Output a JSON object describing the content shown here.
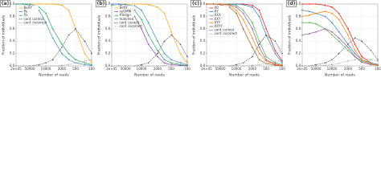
{
  "chart_data": [
    {
      "type": "line",
      "title": "(a)",
      "x_label": "Number of reads",
      "y_label": "Fraction of individuals",
      "x": [
        200000,
        100000,
        50000,
        20000,
        10000,
        5000,
        2000,
        1000,
        500,
        200,
        100
      ],
      "xscale": "log",
      "xlim": [
        200000,
        100
      ],
      "xticks": [
        {
          "value": 200000,
          "label": "2e+05"
        },
        50000,
        10000,
        2000,
        500,
        100
      ],
      "ylim": [
        0,
        1
      ],
      "yticks": [
        {
          "value": 0,
          "label": "0.0"
        },
        0.2,
        0.4,
        0.6,
        0.8,
        {
          "value": 1,
          "label": "1.0"
        }
      ],
      "grid": true,
      "legend": "upper left",
      "series": [
        {
          "name": "BeXY",
          "color": "#f5a623",
          "values": [
            1,
            1,
            1,
            1,
            1,
            1,
            0.98,
            0.9,
            0.6,
            0.2,
            0.05
          ]
        },
        {
          "name": "Ry",
          "color": "#3c8dbc",
          "values": [
            1,
            1,
            0.98,
            0.9,
            0.7,
            0.45,
            0.2,
            0.1,
            0.05,
            0.02,
            0.01
          ]
        },
        {
          "name": "Rx",
          "color": "#2ca25f",
          "values": [
            1,
            1,
            1,
            0.95,
            0.85,
            0.6,
            0.35,
            0.2,
            0.1,
            0.05,
            0.02
          ]
        },
        {
          "name": "conf. correct",
          "color": "#555555",
          "dash": true,
          "values": [
            0,
            0,
            0,
            0.02,
            0.05,
            0.1,
            0.3,
            0.5,
            0.6,
            0.4,
            0.2
          ]
        },
        {
          "name": "conf. incorrect",
          "color": "#aaaaaa",
          "dash": true,
          "values": [
            0,
            0,
            0,
            0,
            0,
            0,
            0.01,
            0.02,
            0.05,
            0.08,
            0.1
          ]
        }
      ]
    },
    {
      "type": "line",
      "title": "(b)",
      "x_label": "Number of reads",
      "y_label": "Fraction of individuals",
      "x": [
        200000,
        100000,
        50000,
        20000,
        10000,
        5000,
        2000,
        1000,
        500,
        200,
        100
      ],
      "xscale": "log",
      "xlim": [
        200000,
        100
      ],
      "xticks": [
        {
          "value": 200000,
          "label": "2e+05"
        },
        50000,
        10000,
        2000,
        500,
        100
      ],
      "ylim": [
        0,
        1
      ],
      "yticks": [
        {
          "value": 0,
          "label": "0.0"
        },
        0.2,
        0.4,
        0.6,
        0.8,
        {
          "value": 1,
          "label": "1.0"
        }
      ],
      "grid": true,
      "legend": "upper left",
      "series": [
        {
          "name": "BeXY",
          "color": "#f5a623",
          "values": [
            1,
            1,
            1,
            1,
            1,
            0.99,
            0.95,
            0.85,
            0.55,
            0.2,
            0.05
          ]
        },
        {
          "name": "seGMM",
          "color": "#8e44ad",
          "values": [
            1,
            1,
            0.95,
            0.8,
            0.6,
            0.35,
            0.15,
            0.05,
            0.02,
            0.01,
            0
          ]
        },
        {
          "name": "XYalign",
          "color": "#2ca25f",
          "values": [
            0.98,
            0.97,
            0.95,
            0.9,
            0.75,
            0.5,
            0.25,
            0.1,
            0.05,
            0.02,
            0.01
          ]
        },
        {
          "name": "matched",
          "color": "#3c8dbc",
          "values": [
            1,
            1,
            0.99,
            0.97,
            0.9,
            0.7,
            0.4,
            0.2,
            0.1,
            0.05,
            0.02
          ]
        },
        {
          "name": "conf. correct",
          "color": "#555555",
          "dash": true,
          "values": [
            0,
            0,
            0,
            0,
            0.02,
            0.05,
            0.2,
            0.4,
            0.5,
            0.35,
            0.15
          ]
        },
        {
          "name": "conf. incorrect",
          "color": "#aaaaaa",
          "dash": true,
          "values": [
            0,
            0,
            0,
            0,
            0,
            0,
            0,
            0.01,
            0.03,
            0.06,
            0.08
          ]
        }
      ]
    },
    {
      "type": "line",
      "title": "(c)",
      "x_label": "Number of reads",
      "y_label": "Fraction of individuals",
      "x": [
        200000,
        100000,
        50000,
        20000,
        10000,
        5000,
        2000,
        1000,
        500,
        200,
        100
      ],
      "xscale": "log",
      "xlim": [
        200000,
        100
      ],
      "xticks": [
        {
          "value": 200000,
          "label": "2e+05"
        },
        50000,
        10000,
        2000,
        500,
        100
      ],
      "ylim": [
        0,
        1
      ],
      "yticks": [
        {
          "value": 0,
          "label": "0.0"
        },
        0.2,
        0.4,
        0.6,
        0.8,
        {
          "value": 1,
          "label": "1.0"
        }
      ],
      "grid": true,
      "legend": "upper left",
      "series": [
        {
          "name": "X0",
          "color": "#e41a1c",
          "values": [
            1,
            1,
            1,
            1,
            1,
            1,
            0.98,
            0.9,
            0.6,
            0.25,
            0.08
          ]
        },
        {
          "name": "XY",
          "color": "#377eb8",
          "values": [
            1,
            1,
            1,
            1,
            1,
            0.99,
            0.95,
            0.8,
            0.5,
            0.2,
            0.05
          ]
        },
        {
          "name": "XXX",
          "color": "#4daf4a",
          "values": [
            1,
            1,
            1,
            1,
            0.98,
            0.9,
            0.7,
            0.4,
            0.15,
            0.05,
            0.02
          ]
        },
        {
          "name": "XXY",
          "color": "#984ea3",
          "values": [
            1,
            1,
            1,
            0.99,
            0.95,
            0.85,
            0.6,
            0.3,
            0.1,
            0.03,
            0.01
          ]
        },
        {
          "name": "XYY",
          "color": "#ff7f00",
          "values": [
            1,
            1,
            1,
            0.98,
            0.9,
            0.75,
            0.45,
            0.2,
            0.08,
            0.02,
            0.01
          ]
        },
        {
          "name": "XXYY",
          "color": "#a65628",
          "values": [
            1,
            1,
            0.99,
            0.95,
            0.85,
            0.6,
            0.3,
            0.1,
            0.04,
            0.01,
            0
          ]
        },
        {
          "name": "conf. correct",
          "color": "#555555",
          "dash": true,
          "values": [
            0,
            0,
            0,
            0,
            0.02,
            0.05,
            0.15,
            0.35,
            0.5,
            0.4,
            0.2
          ]
        },
        {
          "name": "conf. incorrect",
          "color": "#aaaaaa",
          "dash": true,
          "values": [
            0,
            0,
            0,
            0,
            0,
            0,
            0.01,
            0.02,
            0.04,
            0.07,
            0.1
          ]
        }
      ]
    },
    {
      "type": "line",
      "title": "(d)",
      "x_label": "Number of reads",
      "y_label": "Fraction of individuals",
      "x": [
        200000,
        100000,
        50000,
        20000,
        10000,
        5000,
        2000,
        1000,
        500,
        200,
        100
      ],
      "xscale": "log",
      "xlim": [
        200000,
        100
      ],
      "xticks": [
        {
          "value": 200000,
          "label": "2e+05"
        },
        50000,
        10000,
        2000,
        500,
        100
      ],
      "ylim": [
        0,
        1
      ],
      "yticks": [
        {
          "value": 0,
          "label": "0.0"
        },
        0.2,
        0.4,
        0.6,
        0.8,
        {
          "value": 1,
          "label": "1.0"
        }
      ],
      "grid": true,
      "series": [
        {
          "color": "#e41a1c",
          "values": [
            1,
            1,
            1,
            0.98,
            0.95,
            0.85,
            0.6,
            0.35,
            0.15,
            0.05,
            0.02
          ]
        },
        {
          "color": "#377eb8",
          "values": [
            0.9,
            0.88,
            0.85,
            0.8,
            0.7,
            0.55,
            0.35,
            0.2,
            0.1,
            0.05,
            0.02
          ]
        },
        {
          "color": "#4daf4a",
          "values": [
            0.7,
            0.7,
            0.68,
            0.6,
            0.5,
            0.4,
            0.25,
            0.15,
            0.08,
            0.03,
            0.01
          ]
        },
        {
          "color": "#984ea3",
          "values": [
            0.5,
            0.52,
            0.55,
            0.6,
            0.55,
            0.45,
            0.3,
            0.15,
            0.06,
            0.02,
            0.01
          ]
        },
        {
          "color": "#ff7f00",
          "values": [
            0.8,
            0.82,
            0.85,
            0.88,
            0.85,
            0.75,
            0.5,
            0.25,
            0.1,
            0.03,
            0.01
          ]
        },
        {
          "color": "#555555",
          "dash": true,
          "values": [
            0,
            0,
            0.02,
            0.05,
            0.1,
            0.2,
            0.35,
            0.45,
            0.4,
            0.25,
            0.1
          ]
        },
        {
          "color": "#aaaaaa",
          "dash": true,
          "values": [
            0,
            0,
            0,
            0.01,
            0.02,
            0.04,
            0.08,
            0.1,
            0.12,
            0.1,
            0.08
          ]
        }
      ]
    }
  ]
}
